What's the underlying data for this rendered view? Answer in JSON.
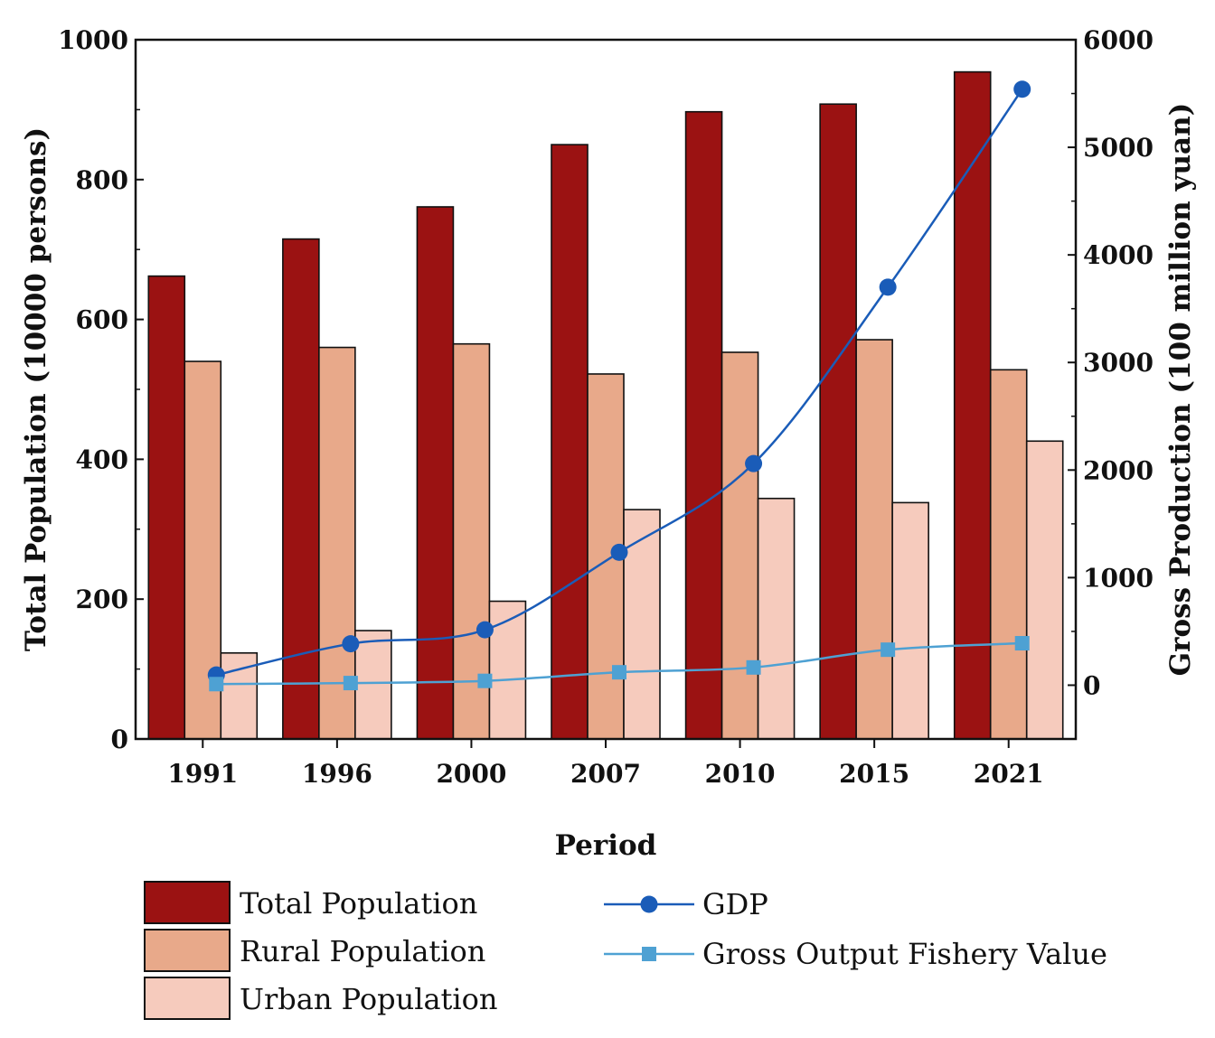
{
  "chart_data": {
    "type": "bar",
    "title": "",
    "xlabel": "Period",
    "ylabel": "Total Population (10000 persons)",
    "y2label": "Gross Production (100 million yuan)",
    "categories": [
      "1991",
      "1996",
      "2000",
      "2007",
      "2010",
      "2015",
      "2021"
    ],
    "ylim": [
      0,
      1000
    ],
    "yticks": [
      "0",
      "200",
      "400",
      "600",
      "800",
      "1000"
    ],
    "y2lim": [
      -500,
      6000
    ],
    "y2ticks": [
      "0",
      "1000",
      "2000",
      "3000",
      "4000",
      "5000",
      "6000"
    ],
    "bar_series": [
      {
        "name": "Total Population",
        "color": "#9b1212",
        "values": [
          662,
          715,
          761,
          850,
          897,
          908,
          954
        ]
      },
      {
        "name": "Rural Population",
        "color": "#e8a98a",
        "values": [
          540,
          560,
          565,
          522,
          553,
          571,
          528
        ]
      },
      {
        "name": "Urban Population",
        "color": "#f6cbbd",
        "values": [
          123,
          155,
          197,
          328,
          344,
          338,
          426
        ]
      }
    ],
    "line_series": [
      {
        "name": "GDP",
        "axis": "right",
        "marker": "circle",
        "color": "#1a5cb8",
        "values": [
          95,
          385,
          515,
          1235,
          2060,
          3700,
          5540
        ]
      },
      {
        "name": "Gross Output Fishery Value",
        "axis": "right",
        "marker": "square",
        "color": "#4ea1d3",
        "values": [
          10,
          20,
          40,
          120,
          165,
          330,
          390
        ]
      }
    ],
    "legend_position": "bottom"
  }
}
